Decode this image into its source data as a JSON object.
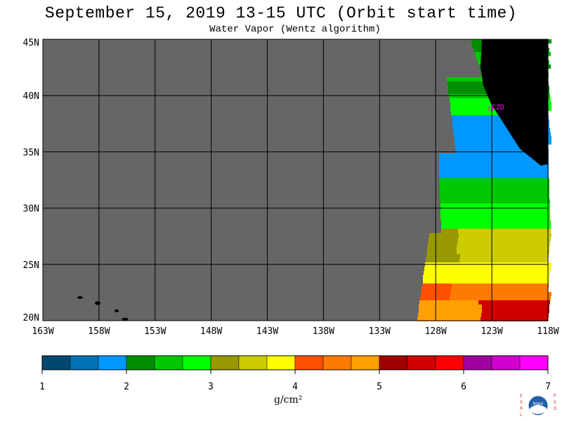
{
  "header": {
    "title": "September 15, 2019  13-15 UTC  (Orbit start time)",
    "subtitle": "Water Vapor (Wentz algorithm)"
  },
  "map": {
    "lat_labels": [
      "45N",
      "40N",
      "35N",
      "30N",
      "25N",
      "20N"
    ],
    "lon_labels": [
      "163W",
      "158W",
      "153W",
      "148W",
      "143W",
      "138W",
      "133W",
      "128W",
      "123W",
      "118W"
    ],
    "station_label": "CZD",
    "colors": {
      "no_data": "#666666",
      "land": "#000000",
      "station": "#ff00ff",
      "grid": "#000000"
    }
  },
  "colorbar": {
    "ticks": [
      "1",
      "2",
      "3",
      "4",
      "5",
      "6",
      "7"
    ],
    "units": "g/cm²",
    "colors": [
      "#00486f",
      "#0072b5",
      "#0098ff",
      "#008e00",
      "#00c800",
      "#00ff00",
      "#989800",
      "#cccc00",
      "#ffff00",
      "#ff5000",
      "#ff7a00",
      "#ffa000",
      "#a00000",
      "#d00000",
      "#ff0000",
      "#a000a0",
      "#d000d0",
      "#ff00ff"
    ]
  },
  "logo": {
    "left_letters": "ESRL",
    "right_letters": "PSD",
    "center_text": "NOAA"
  }
}
